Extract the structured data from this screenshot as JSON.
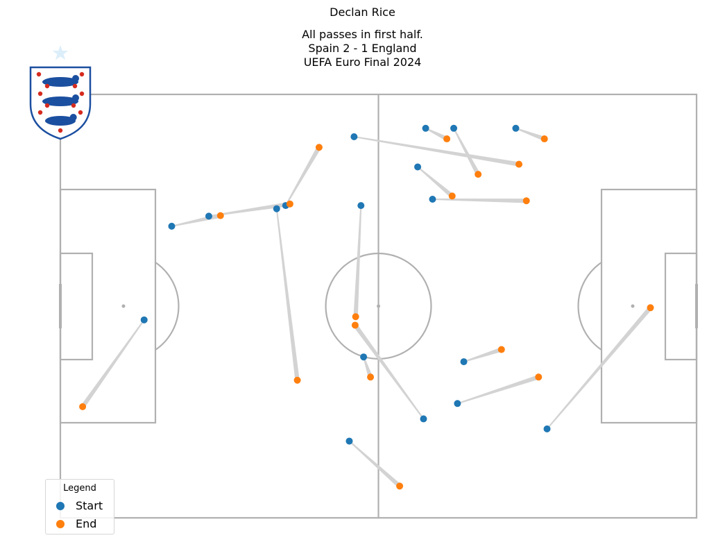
{
  "header": {
    "title": "Declan Rice",
    "subtitle_lines": [
      "All passes in first half.",
      "Spain 2 - 1 England",
      "UEFA Euro Final 2024"
    ]
  },
  "colors": {
    "start": "#1f77b4",
    "end": "#ff7f0e",
    "pass_line": "#d3d3d3",
    "pitch_line": "#b0b0b0",
    "crest_blue": "#1b4fa0",
    "crest_red": "#d52b1e"
  },
  "crest": {
    "icon": "england-three-lions-crest-icon"
  },
  "legend": {
    "title": "Legend",
    "start_label": "Start",
    "end_label": "End"
  },
  "chart_data": {
    "type": "scatter",
    "pitch": {
      "length": 120,
      "width": 80
    },
    "passes": [
      {
        "start": [
          40.8,
          58.4
        ],
        "end": [
          44.7,
          26.0
        ]
      },
      {
        "start": [
          15.8,
          37.4
        ],
        "end": [
          4.2,
          21.0
        ]
      },
      {
        "start": [
          21.0,
          55.1
        ],
        "end": [
          30.2,
          57.1
        ]
      },
      {
        "start": [
          28.0,
          57.0
        ],
        "end": [
          43.3,
          59.3
        ]
      },
      {
        "start": [
          42.5,
          59.0
        ],
        "end": [
          48.8,
          70.0
        ]
      },
      {
        "start": [
          55.4,
          72.0
        ],
        "end": [
          86.5,
          66.8
        ]
      },
      {
        "start": [
          74.2,
          73.6
        ],
        "end": [
          78.8,
          64.9
        ]
      },
      {
        "start": [
          68.9,
          73.6
        ],
        "end": [
          72.9,
          71.6
        ]
      },
      {
        "start": [
          85.9,
          73.6
        ],
        "end": [
          91.3,
          71.6
        ]
      },
      {
        "start": [
          67.4,
          66.3
        ],
        "end": [
          73.9,
          60.8
        ]
      },
      {
        "start": [
          70.2,
          60.2
        ],
        "end": [
          87.9,
          59.9
        ]
      },
      {
        "start": [
          56.7,
          59.0
        ],
        "end": [
          55.7,
          38.0
        ]
      },
      {
        "start": [
          68.5,
          18.7
        ],
        "end": [
          55.6,
          36.4
        ]
      },
      {
        "start": [
          57.2,
          30.4
        ],
        "end": [
          58.5,
          26.6
        ]
      },
      {
        "start": [
          76.1,
          29.5
        ],
        "end": [
          83.2,
          31.8
        ]
      },
      {
        "start": [
          74.9,
          21.6
        ],
        "end": [
          90.2,
          26.6
        ]
      },
      {
        "start": [
          91.8,
          16.8
        ],
        "end": [
          111.3,
          39.7
        ]
      },
      {
        "start": [
          54.5,
          14.5
        ],
        "end": [
          64.0,
          6.0
        ]
      }
    ]
  }
}
